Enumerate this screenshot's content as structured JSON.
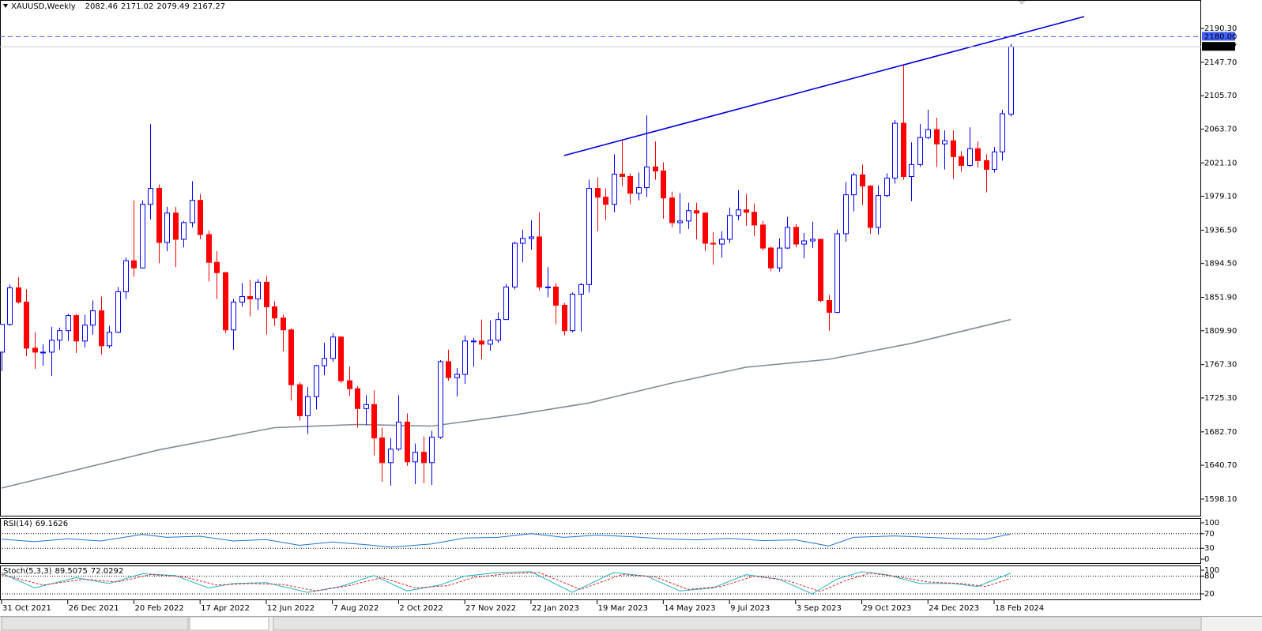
{
  "chart_data": {
    "type": "candlestick",
    "title": "XAUUSD,Weekly",
    "up_color": "#0000ff",
    "down_color": "#ff0000",
    "candles": {
      "open": [
        1783,
        1818,
        1864,
        1846,
        1788,
        1783,
        1783,
        1798,
        1810,
        1829,
        1797,
        1817,
        1835,
        1791,
        1808,
        1859,
        1898,
        1889,
        1969,
        1989,
        1921,
        1958,
        1925,
        1946,
        1974,
        1931,
        1896,
        1883,
        1811,
        1846,
        1853,
        1850,
        1871,
        1840,
        1826,
        1811,
        1742,
        1703,
        1727,
        1766,
        1775,
        1802,
        1747,
        1737,
        1712,
        1717,
        1675,
        1644,
        1661,
        1695,
        1645,
        1657,
        1644,
        1676,
        1771,
        1751,
        1755,
        1797,
        1797,
        1793,
        1798,
        1824,
        1865,
        1920,
        1926,
        1928,
        1865,
        1865,
        1842,
        1810,
        1856,
        1868,
        1989,
        1978,
        1969,
        2007,
        2004,
        1983,
        1990,
        2016,
        2011,
        1977,
        1946,
        1948,
        1961,
        1958,
        1920,
        1919,
        1925,
        1955,
        1962,
        1959,
        1943,
        1914,
        1889,
        1914,
        1940,
        1919,
        1923,
        1925,
        1848,
        1833,
        1932,
        1981,
        2006,
        1992,
        1940,
        1980,
        2002,
        2071,
        2004,
        2019,
        2053,
        2063,
        2045,
        2049,
        2029,
        2018,
        2039,
        2024,
        2013,
        2035,
        2082.46
      ],
      "high": [
        1818,
        1868,
        1877,
        1862,
        1808,
        1793,
        1815,
        1814,
        1831,
        1831,
        1830,
        1848,
        1853,
        1816,
        1865,
        1902,
        1974,
        1974,
        2070,
        1994,
        1966,
        1966,
        1948,
        1998,
        1982,
        1936,
        1910,
        1884,
        1850,
        1870,
        1874,
        1875,
        1879,
        1847,
        1830,
        1813,
        1745,
        1739,
        1767,
        1795,
        1807,
        1803,
        1765,
        1740,
        1729,
        1735,
        1688,
        1675,
        1729,
        1706,
        1668,
        1677,
        1684,
        1773,
        1786,
        1763,
        1804,
        1801,
        1824,
        1823,
        1833,
        1869,
        1922,
        1937,
        1949,
        1959,
        1890,
        1870,
        1845,
        1858,
        1870,
        2000,
        2003,
        1989,
        2032,
        2049,
        2008,
        2009,
        2081,
        2048,
        2022,
        1985,
        1983,
        1971,
        1971,
        1959,
        1934,
        1935,
        1965,
        1987,
        1982,
        1970,
        1948,
        1916,
        1926,
        1953,
        1944,
        1933,
        1947,
        1925,
        1855,
        1937,
        1997,
        2009,
        2019,
        1993,
        1993,
        2008,
        2075,
        2145,
        2047,
        2070,
        2088,
        2078,
        2062,
        2062,
        2036,
        2066,
        2048,
        2032,
        2041,
        2088,
        2171.02
      ],
      "low": [
        1759,
        1816,
        1844,
        1778,
        1762,
        1766,
        1753,
        1786,
        1797,
        1782,
        1789,
        1805,
        1780,
        1788,
        1807,
        1850,
        1878,
        1888,
        1950,
        1895,
        1910,
        1890,
        1915,
        1940,
        1925,
        1872,
        1850,
        1807,
        1786,
        1840,
        1828,
        1836,
        1805,
        1816,
        1784,
        1722,
        1697,
        1680,
        1711,
        1754,
        1771,
        1744,
        1728,
        1688,
        1691,
        1653,
        1620,
        1615,
        1659,
        1640,
        1617,
        1618,
        1616,
        1674,
        1747,
        1727,
        1743,
        1765,
        1774,
        1785,
        1795,
        1824,
        1862,
        1896,
        1912,
        1861,
        1852,
        1818,
        1804,
        1808,
        1809,
        1858,
        1935,
        1949,
        1959,
        1992,
        1969,
        1974,
        1978,
        2000,
        1951,
        1940,
        1932,
        1938,
        1925,
        1910,
        1893,
        1902,
        1920,
        1949,
        1942,
        1929,
        1911,
        1885,
        1884,
        1913,
        1915,
        1901,
        1914,
        1846,
        1810,
        1832,
        1922,
        1960,
        1968,
        1932,
        1931,
        1978,
        1995,
        2000,
        1973,
        2016,
        2051,
        2016,
        2013,
        2001,
        2010,
        2016,
        2015,
        1984,
        2009,
        2024,
        2079.49
      ],
      "close": [
        1818,
        1864,
        1846,
        1788,
        1783,
        1783,
        1798,
        1810,
        1829,
        1797,
        1817,
        1835,
        1791,
        1808,
        1859,
        1898,
        1889,
        1969,
        1989,
        1921,
        1958,
        1925,
        1946,
        1974,
        1931,
        1896,
        1883,
        1811,
        1846,
        1853,
        1850,
        1871,
        1840,
        1826,
        1811,
        1742,
        1703,
        1727,
        1766,
        1775,
        1802,
        1747,
        1737,
        1712,
        1717,
        1675,
        1644,
        1661,
        1695,
        1645,
        1657,
        1644,
        1676,
        1771,
        1751,
        1755,
        1797,
        1797,
        1793,
        1798,
        1824,
        1865,
        1920,
        1926,
        1928,
        1865,
        1865,
        1842,
        1810,
        1856,
        1868,
        1989,
        1978,
        1969,
        2007,
        2004,
        1983,
        1990,
        2016,
        2011,
        1977,
        1946,
        1948,
        1961,
        1958,
        1920,
        1919,
        1925,
        1955,
        1962,
        1959,
        1943,
        1914,
        1889,
        1914,
        1940,
        1919,
        1923,
        1925,
        1848,
        1833,
        1932,
        1981,
        2006,
        1992,
        1940,
        1980,
        2002,
        2071,
        2004,
        2019,
        2053,
        2063,
        2045,
        2049,
        2029,
        2018,
        2039,
        2024,
        2013,
        2035,
        2083,
        2167.27
      ]
    },
    "xlim": [
      -0.19,
      145.03
    ],
    "xticks": [
      {
        "value": 0,
        "label": "31 Oct 2021"
      },
      {
        "value": 8,
        "label": "26 Dec 2021"
      },
      {
        "value": 16,
        "label": "20 Feb 2022"
      },
      {
        "value": 24,
        "label": "17 Apr 2022"
      },
      {
        "value": 32,
        "label": "12 Jun 2022"
      },
      {
        "value": 40,
        "label": "7 Aug 2022"
      },
      {
        "value": 48,
        "label": "2 Oct 2022"
      },
      {
        "value": 56,
        "label": "27 Nov 2022"
      },
      {
        "value": 64,
        "label": "22 Jan 2023"
      },
      {
        "value": 72,
        "label": "19 Mar 2023"
      },
      {
        "value": 80,
        "label": "14 May 2023"
      },
      {
        "value": 88,
        "label": "9 Jul 2023"
      },
      {
        "value": 96,
        "label": "3 Sep 2023"
      },
      {
        "value": 104,
        "label": "29 Oct 2023"
      },
      {
        "value": 112,
        "label": "24 Dec 2023"
      },
      {
        "value": 120,
        "label": "18 Feb 2024"
      }
    ],
    "ylim": [
      1576.2,
      2226.1
    ],
    "yticks": [
      {
        "value": 2190.3,
        "label": "2190.30"
      },
      {
        "value": 2147.7,
        "label": "2147.70"
      },
      {
        "value": 2105.7,
        "label": "2105.70"
      },
      {
        "value": 2063.7,
        "label": "2063.70"
      },
      {
        "value": 2021.1,
        "label": "2021.10"
      },
      {
        "value": 1979.1,
        "label": "1979.10"
      },
      {
        "value": 1936.5,
        "label": "1936.50"
      },
      {
        "value": 1894.5,
        "label": "1894.50"
      },
      {
        "value": 1851.9,
        "label": "1851.90"
      },
      {
        "value": 1809.9,
        "label": "1809.90"
      },
      {
        "value": 1767.3,
        "label": "1767.30"
      },
      {
        "value": 1725.3,
        "label": "1725.30"
      },
      {
        "value": 1682.7,
        "label": "1682.70"
      },
      {
        "value": 1640.7,
        "label": "1640.70"
      },
      {
        "value": 1598.1,
        "label": "1598.10"
      }
    ],
    "moving_average": {
      "color": "#7f8c97",
      "x": [
        0,
        19,
        33,
        43,
        52,
        62,
        71,
        81,
        90,
        100,
        110,
        122
      ],
      "values": [
        1612,
        1660,
        1688,
        1692,
        1690,
        1704,
        1719,
        1744,
        1764,
        1774,
        1794,
        1824
      ]
    },
    "trendline": {
      "color": "#0000e0",
      "x": [
        68.0,
        130.9
      ],
      "values": [
        2030.3,
        2205.2
      ]
    },
    "hline": {
      "color": "#4060ff",
      "value": 2180,
      "label": "2180.00"
    },
    "rsi": {
      "title": "RSI(14)",
      "color": "#1e74d0",
      "x": [
        0,
        4,
        8,
        12,
        17,
        20,
        24,
        28,
        32,
        36,
        40,
        44,
        47,
        52,
        56,
        60,
        64,
        68,
        72,
        76,
        80,
        84,
        88,
        92,
        96,
        100,
        103,
        108,
        112,
        116,
        119,
        122
      ],
      "values": [
        55,
        48,
        56,
        50,
        68,
        60,
        63,
        50,
        54,
        38,
        47,
        40,
        33,
        42,
        58,
        60,
        70,
        60,
        66,
        62,
        56,
        53,
        57,
        51,
        53,
        36,
        60,
        64,
        60,
        56,
        55,
        69.1626
      ],
      "ylim": [
        -13,
        113
      ],
      "yticks": [
        100,
        70,
        30,
        0
      ],
      "levels": [
        70,
        30
      ]
    },
    "stoch": {
      "title": "Stoch(5,3,3)",
      "main": {
        "color": "#20b2c8",
        "x": [
          0,
          4,
          9,
          13,
          17,
          21,
          25,
          28,
          32,
          37,
          41,
          45,
          49,
          53,
          56,
          60,
          64,
          69,
          74,
          78,
          82,
          86,
          90,
          94,
          98,
          101,
          104,
          107,
          111,
          115,
          118,
          122
        ],
        "values": [
          90,
          40,
          75,
          55,
          88,
          82,
          40,
          55,
          58,
          25,
          45,
          82,
          30,
          50,
          80,
          92,
          95,
          25,
          92,
          80,
          30,
          40,
          85,
          70,
          20,
          70,
          95,
          85,
          55,
          55,
          45,
          89.5075
        ]
      },
      "signal": {
        "color": "#e02020",
        "x": [
          0,
          5,
          10,
          14,
          18,
          22,
          26,
          30,
          34,
          38,
          42,
          46,
          50,
          54,
          57,
          61,
          65,
          70,
          75,
          79,
          83,
          87,
          91,
          95,
          99,
          102,
          105,
          108,
          112,
          116,
          119,
          122
        ],
        "values": [
          85,
          50,
          70,
          60,
          85,
          78,
          50,
          55,
          52,
          30,
          48,
          75,
          40,
          48,
          75,
          88,
          92,
          35,
          85,
          78,
          35,
          45,
          80,
          65,
          28,
          65,
          90,
          80,
          60,
          55,
          45,
          72.0292
        ]
      },
      "ylim": [
        -1.3,
        116
      ],
      "yticks": [
        100,
        80,
        20
      ],
      "levels": [
        80,
        20
      ]
    }
  }
}
